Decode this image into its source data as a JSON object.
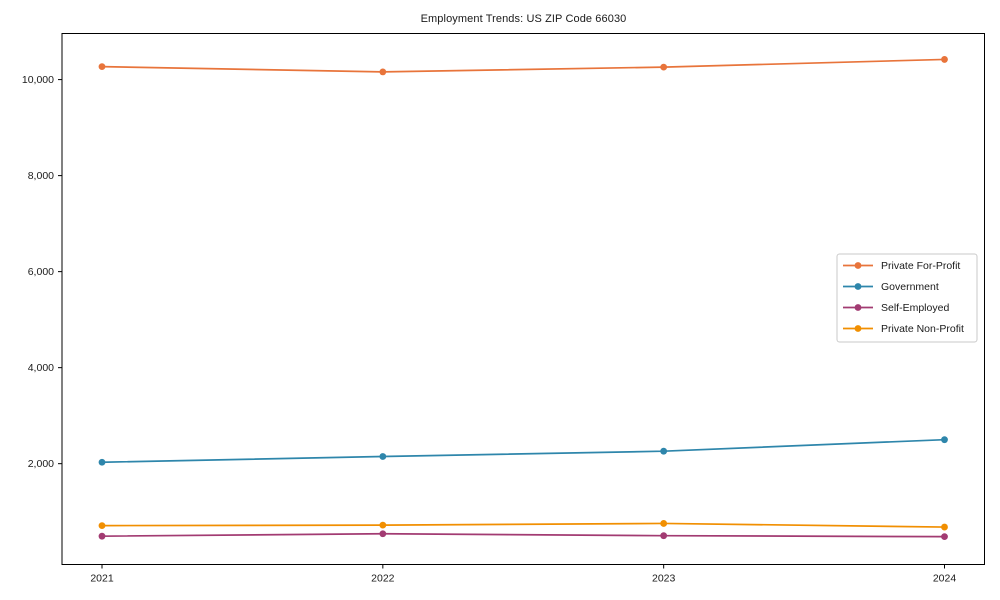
{
  "chart_data": {
    "type": "line",
    "title": "Employment Trends: US ZIP Code 66030",
    "categories": [
      "2021",
      "2022",
      "2023",
      "2024"
    ],
    "series": [
      {
        "name": "Private For-Profit",
        "color": "#e8743b",
        "values": [
          10270,
          10160,
          10260,
          10420
        ]
      },
      {
        "name": "Government",
        "color": "#2e86ab",
        "values": [
          2030,
          2150,
          2260,
          2500
        ]
      },
      {
        "name": "Self-Employed",
        "color": "#a23b72",
        "values": [
          490,
          540,
          500,
          480
        ]
      },
      {
        "name": "Private Non-Profit",
        "color": "#f18f01",
        "values": [
          710,
          720,
          755,
          680
        ]
      }
    ],
    "xlabel": "",
    "ylabel": "",
    "ylim": [
      -100,
      10960
    ],
    "yticks": [
      2000,
      4000,
      6000,
      8000,
      10000
    ],
    "ytick_labels": [
      "2,000",
      "4,000",
      "6,000",
      "8,000",
      "10,000"
    ],
    "legend_position": "center right",
    "grid": false,
    "colors": {
      "text": "#1a1a1a",
      "plot_border": "#000000",
      "legend_border": "#c9c9c9",
      "background": "#ffffff"
    }
  }
}
